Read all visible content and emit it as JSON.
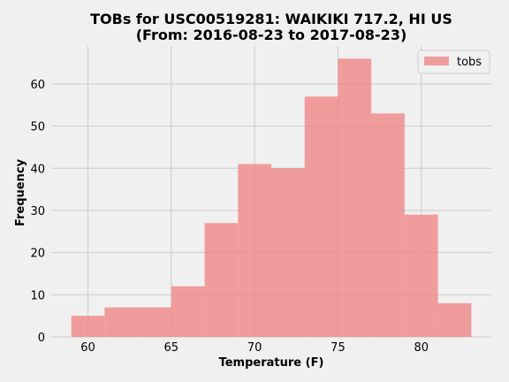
{
  "chart_data": {
    "type": "bar",
    "title_line1": "TOBs for USC00519281: WAIKIKI 717.2, HI US",
    "title_line2": "(From: 2016-08-23 to 2017-08-23)",
    "xlabel": "Temperature (F)",
    "ylabel": "Frequency",
    "xlim": [
      57.8,
      84.2
    ],
    "ylim": [
      0,
      69
    ],
    "x_ticks": [
      60,
      65,
      70,
      75,
      80
    ],
    "y_ticks": [
      0,
      10,
      20,
      30,
      40,
      50,
      60
    ],
    "bin_edges": [
      59,
      61,
      63,
      65,
      67,
      69,
      71,
      73,
      75,
      77,
      79,
      81,
      83
    ],
    "series": [
      {
        "name": "tobs",
        "values": [
          5,
          7,
          7,
          12,
          27,
          41,
          40,
          57,
          66,
          53,
          29,
          8
        ]
      }
    ],
    "bar_color": "#f08080",
    "bar_opacity": 0.75,
    "grid": true,
    "legend_position": "top-right"
  }
}
